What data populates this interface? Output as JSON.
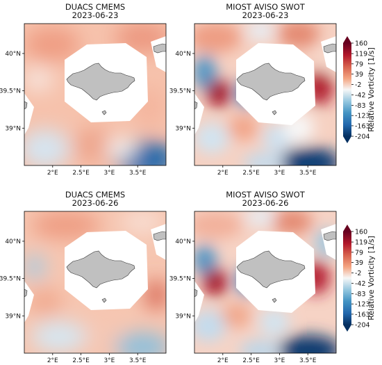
{
  "figure": {
    "panels": [
      {
        "id": "p1",
        "title": "DUACS CMEMS",
        "date": "2023-06-23"
      },
      {
        "id": "p2",
        "title": "MIOST AVISO SWOT",
        "date": "2023-06-23"
      },
      {
        "id": "p3",
        "title": "DUACS CMEMS",
        "date": "2023-06-26"
      },
      {
        "id": "p4",
        "title": "MIOST AVISO SWOT",
        "date": "2023-06-26"
      }
    ]
  },
  "chart_data": {
    "type": "heatmap",
    "lon_ticks": [
      "2°E",
      "2.5°E",
      "3°E",
      "3.5°E"
    ],
    "lon_tick_values": [
      2.0,
      2.5,
      3.0,
      3.5
    ],
    "lat_ticks": [
      "40°N",
      "39.5°N",
      "39°N"
    ],
    "lat_tick_values": [
      40.0,
      39.5,
      39.0
    ],
    "lon_range": [
      1.5,
      4.0
    ],
    "lat_range": [
      38.5,
      40.4
    ],
    "colorbar": {
      "label": "Relative Vorticity [1/s]",
      "ticks": [
        "160",
        "119",
        "79",
        "39",
        "-2",
        "-42",
        "-83",
        "-123",
        "-163",
        "-204"
      ],
      "tick_values": [
        160,
        119,
        79,
        39,
        -2,
        -42,
        -83,
        -123,
        -163,
        -204
      ],
      "range": [
        -204,
        160
      ],
      "extend": "both",
      "colormap": "RdBu_r"
    },
    "colors": {
      "land": "#c0c0c0",
      "mask": "#ffffff",
      "coast": "#333333"
    }
  }
}
